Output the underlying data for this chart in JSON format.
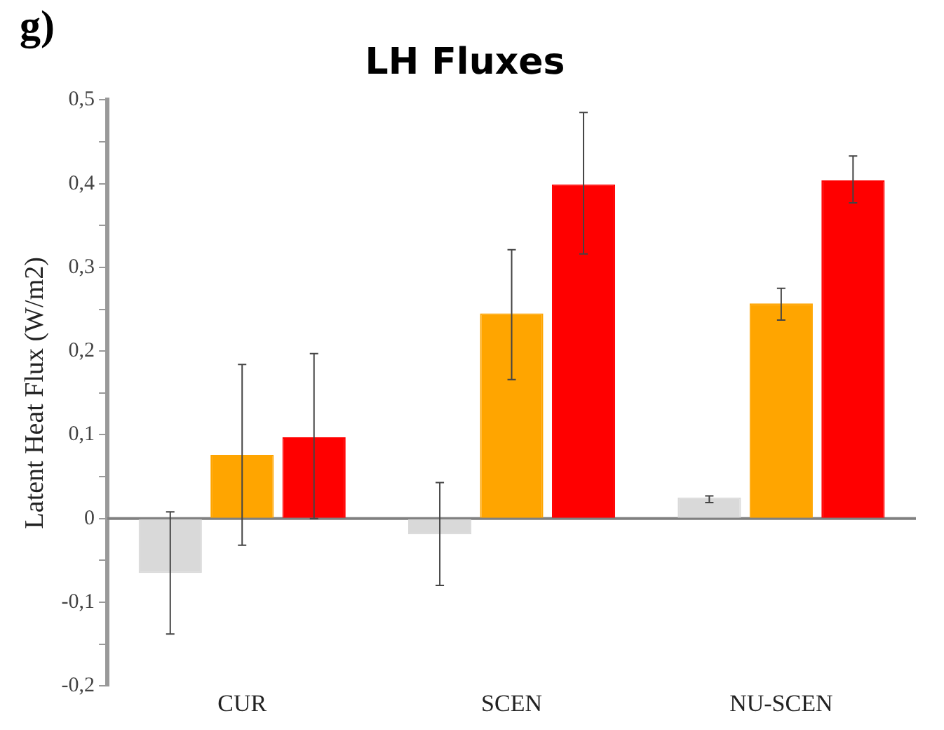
{
  "chart_data": {
    "type": "bar",
    "title": "LH Fluxes",
    "ylabel": "Latent Heat Flux (W/m2)",
    "annotations": [
      "g)"
    ],
    "categories": [
      "CUR",
      "SCEN",
      "NU-SCEN"
    ],
    "series": [
      {
        "color": "#d9d9d9",
        "values": [
          -0.065,
          -0.019,
          0.025
        ],
        "errors": [
          [
            -0.138,
            0.008
          ],
          [
            -0.08,
            0.043
          ],
          [
            0.019,
            0.027
          ]
        ]
      },
      {
        "color": "#ffa500",
        "values": [
          0.076,
          0.245,
          0.257
        ],
        "errors": [
          [
            -0.032,
            0.184
          ],
          [
            0.166,
            0.321
          ],
          [
            0.237,
            0.275
          ]
        ]
      },
      {
        "color": "#ff0000",
        "values": [
          0.097,
          0.399,
          0.404
        ],
        "errors": [
          [
            0,
            0.197
          ],
          [
            0.316,
            0.485
          ],
          [
            0.377,
            0.433
          ]
        ]
      }
    ],
    "ylim": [
      -0.2,
      0.5
    ],
    "yticks": [
      {
        "value": -0.2,
        "label": "-0,2"
      },
      {
        "value": -0.15,
        "label": null
      },
      {
        "value": -0.1,
        "label": "-0,1"
      },
      {
        "value": -0.05,
        "label": null
      },
      {
        "value": 0,
        "label": "0"
      },
      {
        "value": 0.05,
        "label": null
      },
      {
        "value": 0.1,
        "label": "0,1"
      },
      {
        "value": 0.15,
        "label": null
      },
      {
        "value": 0.2,
        "label": "0,2"
      },
      {
        "value": 0.25,
        "label": null
      },
      {
        "value": 0.3,
        "label": "0,3"
      },
      {
        "value": 0.35,
        "label": null
      },
      {
        "value": 0.4,
        "label": "0,4"
      },
      {
        "value": 0.45,
        "label": null
      },
      {
        "value": 0.5,
        "label": "0,5"
      }
    ],
    "ref_lines": [
      {
        "axis": "y",
        "value": 0,
        "color": "#808080"
      }
    ],
    "grid": false,
    "legend": false
  }
}
